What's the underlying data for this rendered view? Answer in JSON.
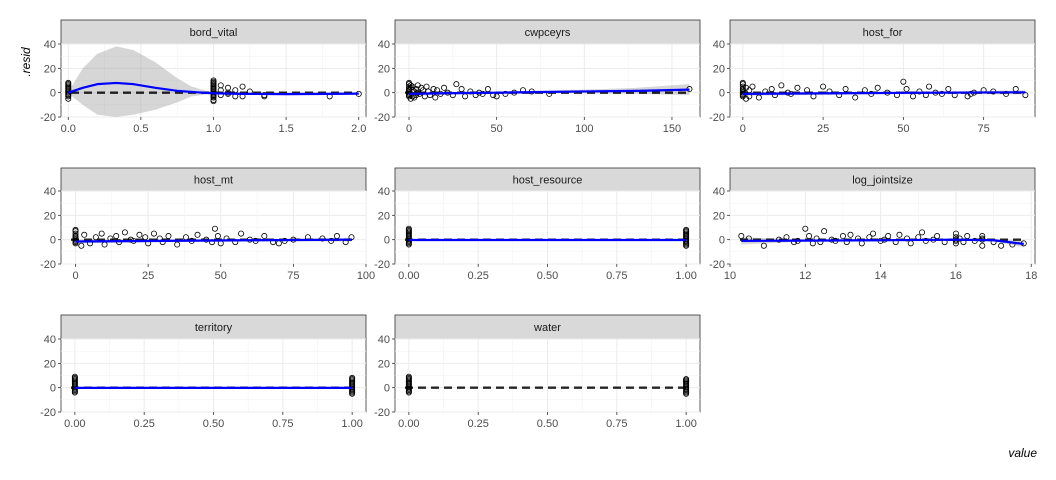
{
  "chart_data": {
    "type": "scatter",
    "xlabel": ".resid",
    "ylabel": "value",
    "ylim": [
      -20,
      40
    ],
    "y_ticks": [
      -20,
      0,
      20,
      40
    ],
    "grid": true,
    "panels": [
      {
        "name": "bord_vital",
        "xlim": [
          -0.05,
          2.05
        ],
        "x_ticks": [
          0.0,
          0.5,
          1.0,
          1.5,
          2.0
        ],
        "x_tick_labels": [
          "0.0",
          "0.5",
          "1.0",
          "1.5",
          "2.0"
        ],
        "points_x": [
          0,
          0,
          0,
          0,
          0,
          0,
          0,
          0,
          0,
          0,
          0,
          0,
          0,
          1,
          1,
          1,
          1,
          1,
          1,
          1,
          1,
          1,
          1,
          1,
          1,
          1,
          1,
          1,
          1,
          1,
          1,
          1.05,
          1.05,
          1.05,
          1.1,
          1.1,
          1.1,
          1.15,
          1.15,
          1.2,
          1.2,
          1.25,
          1.35,
          1.35,
          1.8,
          2
        ],
        "points_y": [
          -3,
          -2,
          -1,
          0,
          1,
          2,
          3,
          5,
          7,
          8,
          -5,
          4,
          6,
          -3,
          -2,
          -1,
          0,
          1,
          2,
          3,
          4,
          5,
          6,
          7,
          8,
          9,
          -4,
          10,
          -6,
          -7,
          3,
          2,
          -2,
          6,
          4,
          -1,
          0,
          -3,
          2,
          5,
          -3,
          1,
          -2,
          -3,
          -3,
          -1
        ],
        "smooth": [
          [
            0,
            0
          ],
          [
            0.1,
            4
          ],
          [
            0.2,
            7
          ],
          [
            0.33,
            8
          ],
          [
            0.45,
            7
          ],
          [
            0.6,
            4
          ],
          [
            0.75,
            1.5
          ],
          [
            0.9,
            0.2
          ],
          [
            1.0,
            -0.5
          ],
          [
            1.2,
            -1
          ],
          [
            1.5,
            -1.2
          ],
          [
            1.8,
            -1
          ],
          [
            2.0,
            -0.8
          ]
        ],
        "ribbon_upper": [
          [
            0,
            0.5
          ],
          [
            0.1,
            20
          ],
          [
            0.2,
            32
          ],
          [
            0.33,
            38
          ],
          [
            0.45,
            35
          ],
          [
            0.6,
            25
          ],
          [
            0.75,
            12
          ],
          [
            0.85,
            5
          ],
          [
            0.95,
            1.5
          ],
          [
            1.0,
            0.5
          ],
          [
            1.5,
            0.2
          ],
          [
            2.0,
            0
          ]
        ],
        "ribbon_lower": [
          [
            0,
            -0.5
          ],
          [
            0.1,
            -10
          ],
          [
            0.2,
            -18
          ],
          [
            0.33,
            -20
          ],
          [
            0.45,
            -18
          ],
          [
            0.6,
            -14
          ],
          [
            0.75,
            -8
          ],
          [
            0.85,
            -3
          ],
          [
            0.95,
            -1.5
          ],
          [
            1.0,
            -1.2
          ],
          [
            1.5,
            -1.8
          ],
          [
            2.0,
            -1.6
          ]
        ],
        "hline": true
      },
      {
        "name": "cwpceyrs",
        "xlim": [
          -8,
          166
        ],
        "x_ticks": [
          0,
          50,
          100,
          150
        ],
        "x_tick_labels": [
          "0",
          "50",
          "100",
          "150"
        ],
        "points_x": [
          0,
          0,
          0,
          0,
          0,
          0,
          0,
          0,
          0,
          0,
          1,
          1,
          1,
          2,
          2,
          2,
          3,
          3,
          4,
          4,
          5,
          5,
          6,
          7,
          8,
          9,
          10,
          11,
          12,
          14,
          15,
          16,
          18,
          20,
          22,
          25,
          27,
          30,
          32,
          35,
          38,
          40,
          42,
          45,
          48,
          50,
          55,
          60,
          65,
          70,
          80,
          160
        ],
        "points_y": [
          -3,
          -2,
          -1,
          0,
          1,
          2,
          3,
          5,
          7,
          8,
          -5,
          4,
          6,
          -3,
          2,
          5,
          -4,
          1,
          3,
          -2,
          6,
          0,
          -1,
          4,
          2,
          -3,
          5,
          1,
          -2,
          3,
          -4,
          2,
          -1,
          4,
          0,
          -2,
          7,
          3,
          -3,
          1,
          -2,
          0,
          -1,
          3,
          -2,
          -3,
          -1,
          0,
          2,
          1,
          -1,
          3
        ],
        "smooth": [
          [
            0,
            -1
          ],
          [
            20,
            -0.5
          ],
          [
            50,
            0
          ],
          [
            100,
            1
          ],
          [
            130,
            1.5
          ],
          [
            160,
            2.5
          ]
        ],
        "ribbon_upper": [
          [
            0,
            0.5
          ],
          [
            50,
            1
          ],
          [
            100,
            2.5
          ],
          [
            130,
            4
          ],
          [
            160,
            7
          ]
        ],
        "ribbon_lower": [
          [
            0,
            -2.5
          ],
          [
            50,
            -1
          ],
          [
            100,
            -0.5
          ],
          [
            130,
            -1
          ],
          [
            160,
            -2
          ]
        ],
        "hline": true
      },
      {
        "name": "host_for",
        "xlim": [
          -4,
          91
        ],
        "x_ticks": [
          0,
          25,
          50,
          75
        ],
        "x_tick_labels": [
          "0",
          "25",
          "50",
          "75"
        ],
        "points_x": [
          0,
          0,
          0,
          0,
          0,
          0,
          0,
          0,
          0,
          0,
          1,
          1,
          2,
          2,
          3,
          5,
          7,
          9,
          10,
          12,
          14,
          15,
          17,
          20,
          22,
          25,
          27,
          30,
          32,
          35,
          38,
          40,
          42,
          45,
          48,
          50,
          51,
          53,
          55,
          57,
          58,
          60,
          62,
          64,
          66,
          70,
          71,
          72,
          75,
          78,
          82,
          85,
          88
        ],
        "points_y": [
          -3,
          -2,
          -1,
          0,
          1,
          2,
          3,
          5,
          7,
          8,
          -5,
          4,
          -3,
          2,
          5,
          -4,
          1,
          3,
          -2,
          6,
          0,
          -1,
          4,
          2,
          -3,
          5,
          1,
          -2,
          3,
          -4,
          2,
          -1,
          4,
          0,
          -2,
          9,
          3,
          -3,
          1,
          -2,
          5,
          0,
          -1,
          3,
          -2,
          -3,
          -1,
          0,
          2,
          1,
          -1,
          3,
          -2
        ],
        "smooth": [
          [
            0,
            -1
          ],
          [
            30,
            -0.5
          ],
          [
            60,
            0
          ],
          [
            88,
            0.3
          ]
        ],
        "ribbon_upper": [
          [
            0,
            0.5
          ],
          [
            30,
            0.7
          ],
          [
            60,
            1
          ],
          [
            88,
            2
          ]
        ],
        "ribbon_lower": [
          [
            0,
            -2.5
          ],
          [
            30,
            -1.7
          ],
          [
            60,
            -1
          ],
          [
            88,
            -1.4
          ]
        ],
        "hline": true
      },
      {
        "name": "host_mt",
        "xlim": [
          -5,
          100
        ],
        "x_ticks": [
          0,
          25,
          50,
          75,
          100
        ],
        "x_tick_labels": [
          "0",
          "25",
          "50",
          "75",
          "100"
        ],
        "points_x": [
          0,
          0,
          0,
          0,
          0,
          0,
          0,
          0,
          0,
          0,
          2,
          3,
          5,
          7,
          9,
          10,
          12,
          14,
          15,
          17,
          19,
          20,
          22,
          24,
          25,
          27,
          29,
          30,
          32,
          35,
          38,
          40,
          42,
          45,
          47,
          48,
          49,
          50,
          52,
          55,
          57,
          60,
          62,
          65,
          68,
          70,
          72,
          75,
          80,
          85,
          88,
          90,
          93,
          95
        ],
        "points_y": [
          -3,
          -2,
          -1,
          0,
          1,
          2,
          3,
          5,
          7,
          8,
          -5,
          4,
          -3,
          2,
          5,
          -4,
          1,
          3,
          -2,
          6,
          0,
          -1,
          4,
          2,
          -3,
          5,
          1,
          -2,
          3,
          -4,
          2,
          -1,
          4,
          0,
          -2,
          9,
          3,
          -3,
          1,
          -2,
          5,
          0,
          -1,
          3,
          -2,
          -3,
          -1,
          0,
          2,
          1,
          -1,
          3,
          -2,
          2
        ],
        "smooth": [
          [
            0,
            -1.5
          ],
          [
            30,
            -1
          ],
          [
            60,
            -0.5
          ],
          [
            95,
            0
          ]
        ],
        "ribbon_upper": [
          [
            0,
            0
          ],
          [
            30,
            0
          ],
          [
            60,
            0.5
          ],
          [
            95,
            1.5
          ]
        ],
        "ribbon_lower": [
          [
            0,
            -3
          ],
          [
            30,
            -2
          ],
          [
            60,
            -1.5
          ],
          [
            95,
            -1.5
          ]
        ],
        "hline": true
      },
      {
        "name": "host_resource",
        "xlim": [
          -0.05,
          1.05
        ],
        "x_ticks": [
          0.0,
          0.25,
          0.5,
          0.75,
          1.0
        ],
        "x_tick_labels": [
          "0.00",
          "0.25",
          "0.50",
          "0.75",
          "1.00"
        ],
        "points_x": [
          0,
          0,
          0,
          0,
          0,
          0,
          0,
          0,
          0,
          0,
          0,
          0,
          0,
          0,
          1,
          1,
          1,
          1,
          1,
          1,
          1,
          1,
          1,
          1,
          1,
          1,
          1,
          1
        ],
        "points_y": [
          -4,
          -3,
          -2,
          -1,
          0,
          1,
          2,
          3,
          4,
          5,
          6,
          7,
          8,
          9,
          -4,
          -3,
          -2,
          -1,
          0,
          1,
          2,
          3,
          4,
          5,
          6,
          7,
          8,
          -5
        ],
        "smooth": [
          [
            0,
            -0.3
          ],
          [
            1,
            -0.3
          ]
        ],
        "ribbon_upper": [
          [
            0,
            0.5
          ],
          [
            1,
            0.5
          ]
        ],
        "ribbon_lower": [
          [
            0,
            -1
          ],
          [
            1,
            -1
          ]
        ],
        "hline": true
      },
      {
        "name": "log_jointsize",
        "xlim": [
          10,
          18.1
        ],
        "x_ticks": [
          10,
          12,
          14,
          16,
          18
        ],
        "x_tick_labels": [
          "10",
          "12",
          "14",
          "16",
          "18"
        ],
        "points_x": [
          10.3,
          10.5,
          10.9,
          11.3,
          11.5,
          11.7,
          11.8,
          12,
          12.1,
          12.2,
          12.3,
          12.4,
          12.5,
          12.7,
          12.8,
          13,
          13.1,
          13.2,
          13.4,
          13.5,
          13.7,
          13.8,
          14,
          14.1,
          14.2,
          14.4,
          14.5,
          14.7,
          14.8,
          15,
          15.1,
          15.2,
          15.4,
          15.5,
          15.7,
          16,
          16,
          16,
          16,
          16,
          16.1,
          16.2,
          16.3,
          16.5,
          16.7,
          16.7,
          16.7,
          16.7,
          17,
          17.2,
          17.5,
          17.8
        ],
        "points_y": [
          3,
          1,
          -5,
          0,
          2,
          -2,
          -1,
          9,
          3,
          -3,
          1,
          -2,
          7,
          0,
          -1,
          3,
          -2,
          4,
          1,
          -3,
          2,
          5,
          -1,
          0,
          3,
          -2,
          4,
          1,
          -3,
          2,
          6,
          -1,
          0,
          3,
          -2,
          -3,
          -1,
          0,
          2,
          5,
          1,
          -2,
          3,
          -1,
          -5,
          0,
          3,
          1,
          -2,
          -5,
          -4,
          -3
        ],
        "smooth": [
          [
            10.3,
            -1
          ],
          [
            12,
            -0.8
          ],
          [
            14,
            -0.5
          ],
          [
            16,
            0
          ],
          [
            17,
            -0.5
          ],
          [
            17.8,
            -3.5
          ]
        ],
        "ribbon_upper": [
          [
            10.3,
            2
          ],
          [
            12,
            0
          ],
          [
            14,
            0.5
          ],
          [
            16,
            1
          ],
          [
            17,
            0.5
          ],
          [
            17.8,
            -1
          ]
        ],
        "ribbon_lower": [
          [
            10.3,
            -4
          ],
          [
            12,
            -1.6
          ],
          [
            14,
            -1.5
          ],
          [
            16,
            -1
          ],
          [
            17,
            -1.5
          ],
          [
            17.8,
            -6
          ]
        ],
        "hline": true
      },
      {
        "name": "territory",
        "xlim": [
          -0.05,
          1.05
        ],
        "x_ticks": [
          0.0,
          0.25,
          0.5,
          0.75,
          1.0
        ],
        "x_tick_labels": [
          "0.00",
          "0.25",
          "0.50",
          "0.75",
          "1.00"
        ],
        "points_x": [
          0,
          0,
          0,
          0,
          0,
          0,
          0,
          0,
          0,
          0,
          0,
          0,
          0,
          0,
          1,
          1,
          1,
          1,
          1,
          1,
          1,
          1,
          1,
          1,
          1,
          1,
          1,
          1
        ],
        "points_y": [
          -4,
          -3,
          -2,
          -1,
          0,
          1,
          2,
          3,
          4,
          5,
          6,
          7,
          8,
          9,
          -4,
          -3,
          -2,
          -1,
          0,
          1,
          2,
          3,
          4,
          5,
          6,
          7,
          8,
          -5
        ],
        "smooth": [
          [
            0,
            -0.2
          ],
          [
            1,
            -0.2
          ]
        ],
        "ribbon_upper": [
          [
            0,
            0.4
          ],
          [
            1,
            0.4
          ]
        ],
        "ribbon_lower": [
          [
            0,
            -0.8
          ],
          [
            1,
            -0.8
          ]
        ],
        "hline": true
      },
      {
        "name": "water",
        "xlim": [
          -0.05,
          1.05
        ],
        "x_ticks": [
          0.0,
          0.25,
          0.5,
          0.75,
          1.0
        ],
        "x_tick_labels": [
          "0.00",
          "0.25",
          "0.50",
          "0.75",
          "1.00"
        ],
        "points_x": [
          0,
          0,
          0,
          0,
          0,
          0,
          0,
          0,
          0,
          0,
          0,
          0,
          0,
          0,
          1,
          1,
          1,
          1,
          1,
          1,
          1,
          1,
          1,
          1,
          1,
          1,
          1,
          1
        ],
        "points_y": [
          -4,
          -3,
          -2,
          -1,
          0,
          1,
          2,
          3,
          4,
          5,
          6,
          7,
          8,
          9,
          -4,
          -3,
          -2,
          -1,
          0,
          1,
          2,
          3,
          4,
          5,
          6,
          7,
          6,
          -5
        ],
        "smooth": [],
        "ribbon_upper": [],
        "ribbon_lower": [],
        "hline": true
      }
    ]
  }
}
